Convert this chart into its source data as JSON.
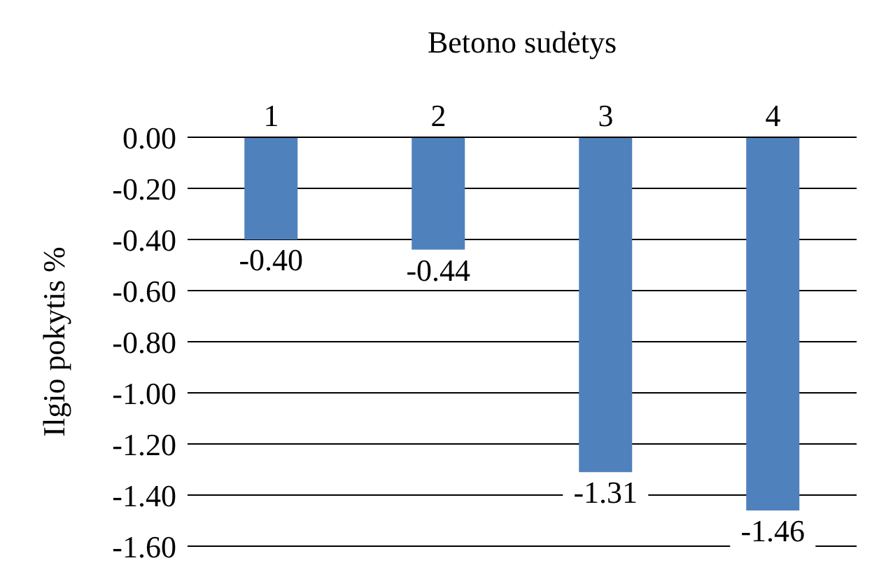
{
  "chart_data": {
    "type": "bar",
    "xlabel": "Betono sudėtys",
    "ylabel": "Ilgio pokytis %",
    "categories": [
      "1",
      "2",
      "3",
      "4"
    ],
    "values": [
      -0.4,
      -0.44,
      -1.31,
      -1.46
    ],
    "value_labels": [
      "-0.40",
      "-0.44",
      "-1.31",
      "-1.46"
    ],
    "color": "#4f81bd",
    "ylim": [
      -1.6,
      0
    ],
    "yticks": [
      {
        "value": 0,
        "label": "0.00"
      },
      {
        "value": -0.2,
        "label": "-0.20"
      },
      {
        "value": -0.4,
        "label": "-0.40"
      },
      {
        "value": -0.6,
        "label": "-0.60"
      },
      {
        "value": -0.8,
        "label": "-0.80"
      },
      {
        "value": -1.0,
        "label": "-1.00"
      },
      {
        "value": -1.2,
        "label": "-1.20"
      },
      {
        "value": -1.4,
        "label": "-1.40"
      },
      {
        "value": -1.6,
        "label": "-1.60"
      }
    ],
    "grid": "y",
    "legend": false
  }
}
